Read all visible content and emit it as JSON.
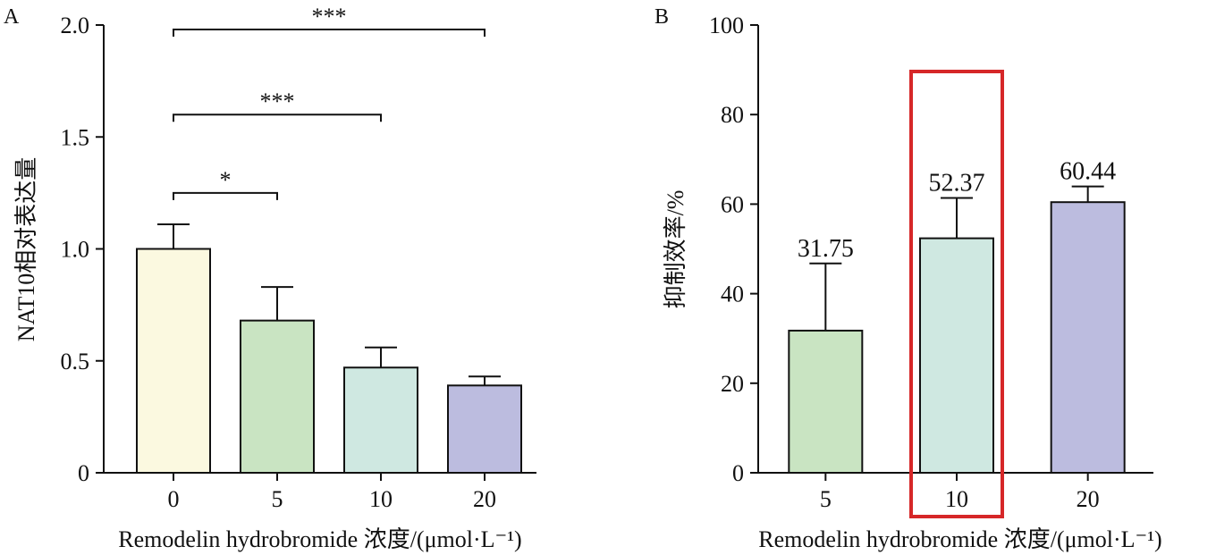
{
  "chart_data": [
    {
      "panel": "A",
      "type": "bar",
      "xlabel": "Remodelin hydrobromide 浓度/(μmol·L⁻¹)",
      "ylabel": "NAT10相对表达量",
      "categories": [
        "0",
        "5",
        "10",
        "20"
      ],
      "values": [
        1.0,
        0.68,
        0.47,
        0.39
      ],
      "errors": [
        0.11,
        0.15,
        0.09,
        0.04
      ],
      "colors": [
        "#fbf9e0",
        "#c9e4c2",
        "#cfe8e1",
        "#bcbcdf"
      ],
      "ylim": [
        0,
        2.0
      ],
      "yticks": [
        "0",
        "0.5",
        "1.0",
        "1.5",
        "2.0"
      ],
      "significance": [
        {
          "from": 0,
          "to": 1,
          "y": 1.25,
          "label": "*"
        },
        {
          "from": 0,
          "to": 2,
          "y": 1.6,
          "label": "***"
        },
        {
          "from": 0,
          "to": 3,
          "y": 1.98,
          "label": "***"
        }
      ]
    },
    {
      "panel": "B",
      "type": "bar",
      "xlabel": "Remodelin hydrobromide 浓度/(μmol·L⁻¹)",
      "ylabel": "抑制效率/%",
      "categories": [
        "5",
        "10",
        "20"
      ],
      "values": [
        31.75,
        52.37,
        60.44
      ],
      "value_labels": [
        "31.75",
        "52.37",
        "60.44"
      ],
      "errors": [
        15.0,
        9.0,
        3.5
      ],
      "colors": [
        "#c9e4c2",
        "#cfe8e1",
        "#bcbcdf"
      ],
      "ylim": [
        0,
        100
      ],
      "yticks": [
        "0",
        "20",
        "40",
        "60",
        "80",
        "100"
      ],
      "highlight_category": "10",
      "highlight_color": "#d62728"
    }
  ]
}
